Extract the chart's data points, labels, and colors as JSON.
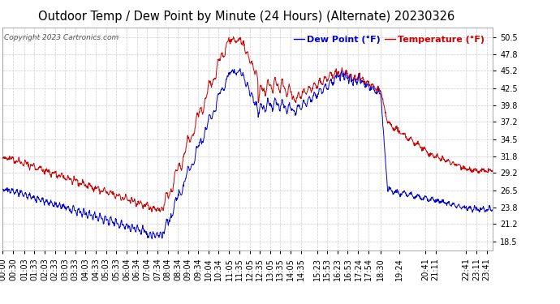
{
  "title": "Outdoor Temp / Dew Point by Minute (24 Hours) (Alternate) 20230326",
  "copyright": "Copyright 2023 Cartronics.com",
  "legend_dew": "Dew Point (°F)",
  "legend_temp": "Temperature (°F)",
  "yticks": [
    18.5,
    21.2,
    23.8,
    26.5,
    29.2,
    31.8,
    34.5,
    37.2,
    39.8,
    42.5,
    45.2,
    47.8,
    50.5
  ],
  "ylim": [
    17.0,
    52.0
  ],
  "background_color": "#ffffff",
  "grid_color": "#cccccc",
  "temp_color": "#cc0000",
  "dew_color": "#0000cc",
  "title_fontsize": 10.5,
  "tick_fontsize": 7,
  "copyright_fontsize": 6.5,
  "legend_fontsize": 8,
  "xtick_labels": [
    "00:00",
    "00:30",
    "01:03",
    "01:33",
    "02:03",
    "02:33",
    "03:03",
    "03:33",
    "04:03",
    "04:33",
    "05:03",
    "05:33",
    "06:04",
    "06:34",
    "07:04",
    "07:34",
    "08:04",
    "08:34",
    "09:04",
    "09:34",
    "10:04",
    "10:34",
    "11:05",
    "11:35",
    "12:05",
    "12:35",
    "13:05",
    "13:35",
    "14:05",
    "14:35",
    "15:23",
    "15:53",
    "16:23",
    "16:53",
    "17:24",
    "17:54",
    "18:30",
    "19:24",
    "20:41",
    "21:11",
    "22:41",
    "23:11",
    "23:41"
  ]
}
